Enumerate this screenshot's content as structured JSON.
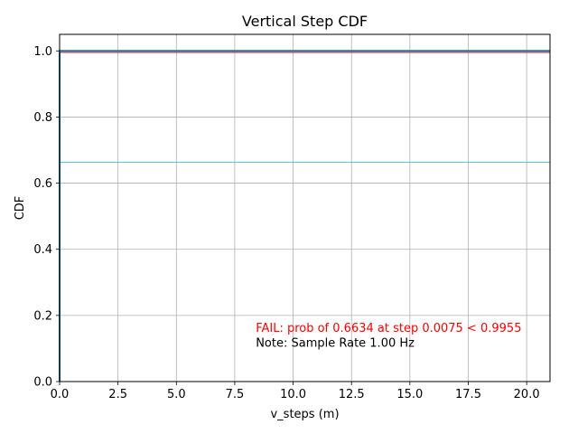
{
  "chart_data": {
    "type": "line",
    "title": "Vertical Step CDF",
    "xlabel": "v_steps (m)",
    "ylabel": "CDF",
    "xlim": [
      0,
      21
    ],
    "ylim": [
      0,
      1.05
    ],
    "x_ticks": [
      0,
      2.5,
      5,
      7.5,
      10,
      12.5,
      15,
      17.5,
      20
    ],
    "x_tick_labels": [
      "0.0",
      "2.5",
      "5.0",
      "7.5",
      "10.0",
      "12.5",
      "15.0",
      "17.5",
      "20.0"
    ],
    "y_ticks": [
      0,
      0.2,
      0.4,
      0.6,
      0.8,
      1.0
    ],
    "y_tick_labels": [
      "0.0",
      "0.2",
      "0.4",
      "0.6",
      "0.8",
      "1.0"
    ],
    "grid": true,
    "series": [
      {
        "x": [
          0,
          0,
          21
        ],
        "y": [
          0,
          1.0,
          1.0
        ],
        "color": "#1f77b4",
        "width": 2
      }
    ],
    "hlines": [
      {
        "y": 0.9955,
        "color": "#d62728",
        "width": 1.2
      },
      {
        "y": 0.6634,
        "color": "#17becf",
        "width": 0.8
      }
    ],
    "annotations": [
      {
        "text": "FAIL: prob of 0.6634 at step 0.0075 < 0.9955",
        "x": 8.4,
        "y": 0.15,
        "color": "#ff0000"
      },
      {
        "text": "Note: Sample Rate 1.00 Hz",
        "x": 8.4,
        "y": 0.105,
        "color": "#000000"
      }
    ]
  }
}
